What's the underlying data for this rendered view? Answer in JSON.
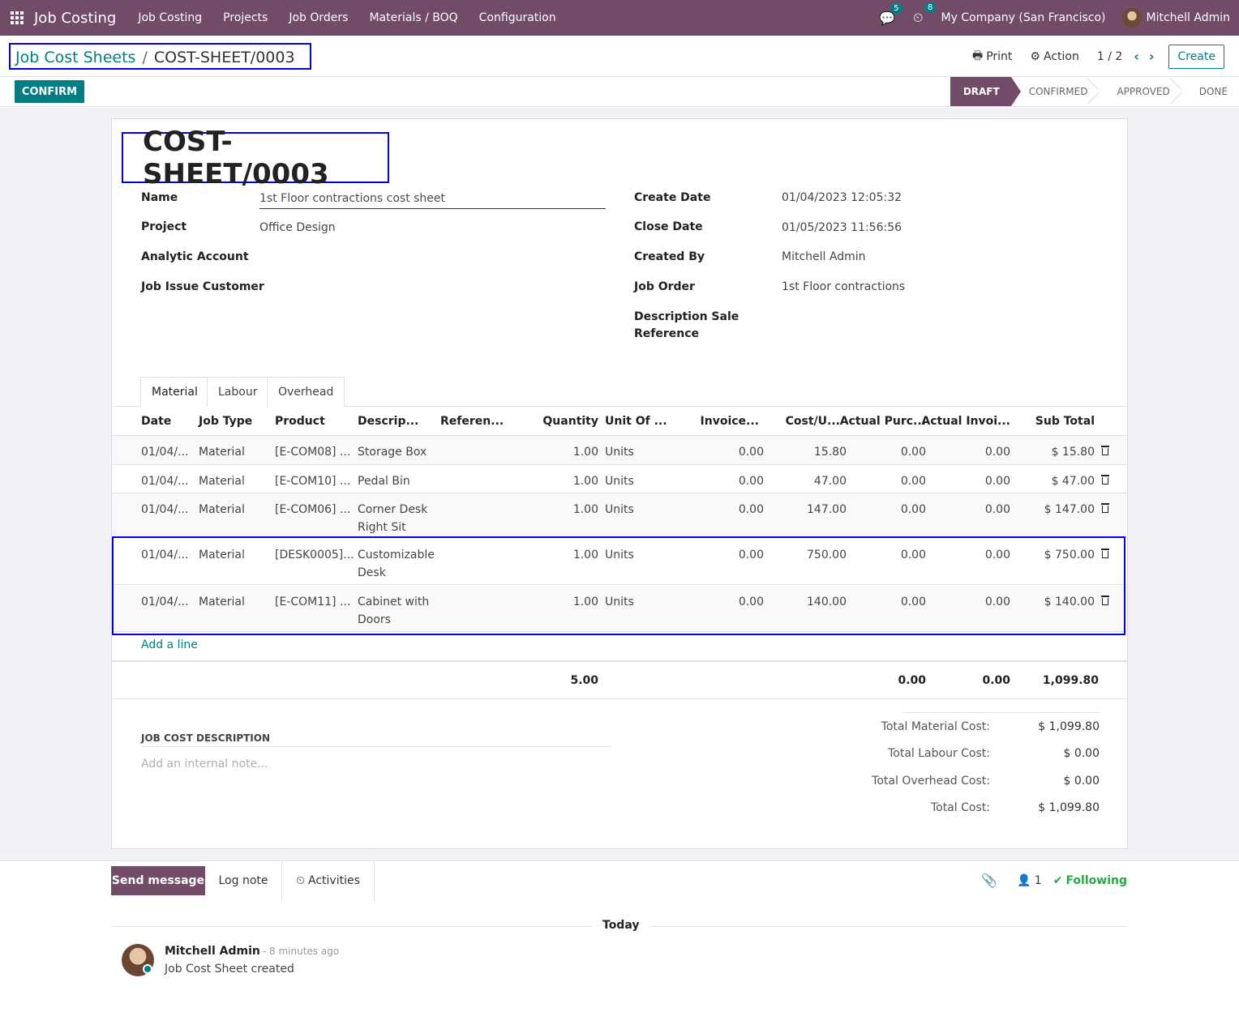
{
  "navbar": {
    "brand": "Job Costing",
    "menus": [
      "Job Costing",
      "Projects",
      "Job Orders",
      "Materials / BOQ",
      "Configuration"
    ],
    "messages_count": "5",
    "activities_count": "8",
    "company": "My Company (San Francisco)",
    "user": "Mitchell Admin"
  },
  "breadcrumb": {
    "parent": "Job Cost Sheets",
    "separator": "/",
    "current": "COST-SHEET/0003"
  },
  "control": {
    "print": "Print",
    "action": "Action",
    "pager": "1 / 2",
    "create": "Create",
    "confirm": "CONFIRM",
    "statuses": [
      "DRAFT",
      "CONFIRMED",
      "APPROVED",
      "DONE"
    ],
    "active_status": "DRAFT"
  },
  "form": {
    "title": "COST-SHEET/0003",
    "left": [
      {
        "label": "Name",
        "value": "1st Floor contractions cost sheet"
      },
      {
        "label": "Project",
        "value": "Office Design"
      },
      {
        "label": "Analytic Account",
        "value": ""
      },
      {
        "label": "Job Issue Customer",
        "value": ""
      }
    ],
    "right": [
      {
        "label": "Create Date",
        "value": "01/04/2023 12:05:32"
      },
      {
        "label": "Close Date",
        "value": "01/05/2023 11:56:56"
      },
      {
        "label": "Created By",
        "value": "Mitchell Admin"
      },
      {
        "label": "Job Order",
        "value": "1st Floor contractions"
      },
      {
        "label": "Description Sale\nReference",
        "value": ""
      }
    ]
  },
  "tabs": [
    "Material",
    "Labour",
    "Overhead"
  ],
  "table": {
    "headers": [
      "Date",
      "Job Type",
      "Product",
      "Descrip...",
      "Referen...",
      "Quantity",
      "Unit Of ...",
      "Invoice...",
      "Cost/U...",
      "Actual Purc...",
      "Actual Invoi...",
      "Sub Total"
    ],
    "rows": [
      {
        "date": "01/04/...",
        "type": "Material",
        "product": "[E-COM08] ...",
        "desc": "Storage Box",
        "ref": "",
        "qty": "1.00",
        "uom": "Units",
        "invoice": "0.00",
        "cost": "15.80",
        "purc": "0.00",
        "invoi": "0.00",
        "subtotal": "$ 15.80"
      },
      {
        "date": "01/04/...",
        "type": "Material",
        "product": "[E-COM10] ...",
        "desc": "Pedal Bin",
        "ref": "",
        "qty": "1.00",
        "uom": "Units",
        "invoice": "0.00",
        "cost": "47.00",
        "purc": "0.00",
        "invoi": "0.00",
        "subtotal": "$ 47.00"
      },
      {
        "date": "01/04/...",
        "type": "Material",
        "product": "[E-COM06] ...",
        "desc": "Corner Desk Right Sit",
        "ref": "",
        "qty": "1.00",
        "uom": "Units",
        "invoice": "0.00",
        "cost": "147.00",
        "purc": "0.00",
        "invoi": "0.00",
        "subtotal": "$ 147.00"
      },
      {
        "date": "01/04/...",
        "type": "Material",
        "product": "[DESK0005]...",
        "desc": "Customizable Desk",
        "ref": "",
        "qty": "1.00",
        "uom": "Units",
        "invoice": "0.00",
        "cost": "750.00",
        "purc": "0.00",
        "invoi": "0.00",
        "subtotal": "$ 750.00"
      },
      {
        "date": "01/04/...",
        "type": "Material",
        "product": "[E-COM11] ...",
        "desc": "Cabinet with Doors",
        "ref": "",
        "qty": "1.00",
        "uom": "Units",
        "invoice": "0.00",
        "cost": "140.00",
        "purc": "0.00",
        "invoi": "0.00",
        "subtotal": "$ 140.00"
      }
    ],
    "add_line": "Add a line",
    "footer": {
      "qty": "5.00",
      "purc": "0.00",
      "invoi": "0.00",
      "subtotal": "1,099.80"
    }
  },
  "description": {
    "label": "JOB COST DESCRIPTION",
    "placeholder": "Add an internal note..."
  },
  "totals": [
    {
      "label": "Total Material Cost:",
      "value": "$ 1,099.80"
    },
    {
      "label": "Total Labour Cost:",
      "value": "$ 0.00"
    },
    {
      "label": "Total Overhead Cost:",
      "value": "$ 0.00"
    },
    {
      "label": "Total Cost:",
      "value": "$ 1,099.80"
    }
  ],
  "chatter": {
    "send_message": "Send message",
    "log_note": "Log note",
    "activities": "Activities",
    "followers_count": "1",
    "following": "Following",
    "today": "Today",
    "message": {
      "author": "Mitchell Admin",
      "time": "- 8 minutes ago",
      "body": "Job Cost Sheet created"
    }
  }
}
